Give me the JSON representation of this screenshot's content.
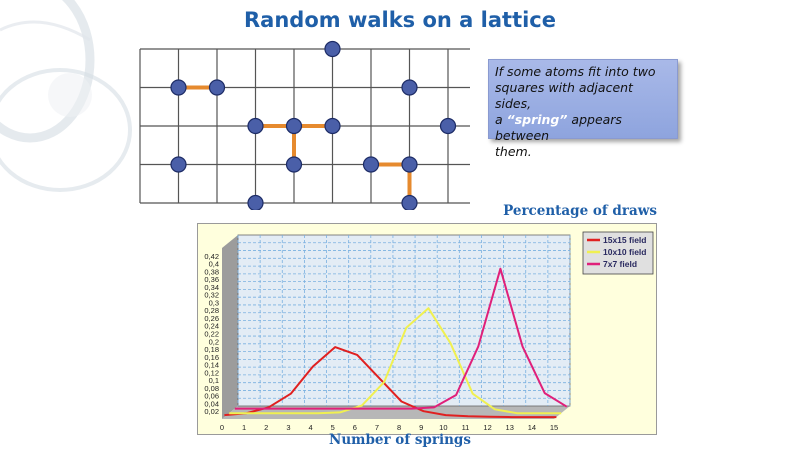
{
  "slide": {
    "title": "Random walks on a lattice",
    "note": {
      "line1": "If some atoms fit into two",
      "line2": "squares with adjacent sides,",
      "line3_pre": "a ",
      "line3_kw": "“spring”",
      "line3_post": " appears between",
      "line4": "them."
    }
  },
  "colors": {
    "title": "#1f5fa8",
    "grid_line": "#555555",
    "atom_fill": "#4a5fa8",
    "atom_stroke": "#1d2c66",
    "spring": "#e68a2e",
    "chart_bg": "#ffffdd",
    "plot_bg": "#e3ecf5",
    "plot_grid": "#7ab0e0",
    "legend_bg": "#e0e0e0"
  },
  "lattice": {
    "columns": 9,
    "rows": 4,
    "atoms": [
      {
        "col": 5,
        "row": 0
      },
      {
        "col": 1,
        "row": 1
      },
      {
        "col": 2,
        "row": 1
      },
      {
        "col": 7,
        "row": 1
      },
      {
        "col": 3,
        "row": 2
      },
      {
        "col": 4,
        "row": 2
      },
      {
        "col": 5,
        "row": 2
      },
      {
        "col": 8,
        "row": 2
      },
      {
        "col": 1,
        "row": 3
      },
      {
        "col": 4,
        "row": 3
      },
      {
        "col": 6,
        "row": 3
      },
      {
        "col": 7,
        "row": 3
      },
      {
        "col": 3,
        "row": 4
      },
      {
        "col": 7,
        "row": 4
      }
    ],
    "springs": [
      [
        {
          "col": 1,
          "row": 1
        },
        {
          "col": 2,
          "row": 1
        }
      ],
      [
        {
          "col": 3,
          "row": 2
        },
        {
          "col": 4,
          "row": 2
        }
      ],
      [
        {
          "col": 4,
          "row": 2
        },
        {
          "col": 5,
          "row": 2
        }
      ],
      [
        {
          "col": 4,
          "row": 2
        },
        {
          "col": 4,
          "row": 3
        }
      ],
      [
        {
          "col": 6,
          "row": 3
        },
        {
          "col": 7,
          "row": 3
        }
      ],
      [
        {
          "col": 7,
          "row": 3
        },
        {
          "col": 7,
          "row": 4
        }
      ]
    ]
  },
  "axis_labels": {
    "y_title": "Percentage of draws",
    "x_title": "Number of springs"
  },
  "chart_data": {
    "type": "line",
    "title": "",
    "xlabel": "Number of springs",
    "ylabel": "Percentage of draws",
    "x": [
      0,
      1,
      2,
      3,
      4,
      5,
      6,
      7,
      8,
      9,
      10,
      11,
      12,
      13,
      14,
      15
    ],
    "x_tick_labels": [
      "0",
      "1",
      "2",
      "3",
      "4",
      "5",
      "6",
      "7",
      "8",
      "9",
      "10",
      "11",
      "12",
      "13",
      "14",
      "15"
    ],
    "y_tick_labels": [
      "0,02",
      "0,04",
      "0,06",
      "0,08",
      "0,1",
      "0,12",
      "0,14",
      "0,16",
      "0,18",
      "0,2",
      "0,22",
      "0,24",
      "0,26",
      "0,28",
      "0,3",
      "0,32",
      "0,34",
      "0,36",
      "0,38",
      "0,4",
      "0,42"
    ],
    "ylim": [
      0,
      0.44
    ],
    "xlim": [
      0,
      15
    ],
    "grid": true,
    "legend_position": "top-right",
    "series": [
      {
        "name": "15x15 field",
        "color": "#e02020",
        "values": [
          0.005,
          0.01,
          0.025,
          0.06,
          0.13,
          0.18,
          0.16,
          0.1,
          0.04,
          0.015,
          0.005,
          0.002,
          0.001,
          0,
          0,
          0
        ]
      },
      {
        "name": "10x10 field",
        "color": "#f0f050",
        "values": [
          0,
          0,
          0,
          0,
          0,
          0.002,
          0.02,
          0.08,
          0.22,
          0.27,
          0.18,
          0.05,
          0.01,
          0,
          0,
          0
        ]
      },
      {
        "name": "7x7 field",
        "color": "#e0207a",
        "values": [
          0,
          0,
          0,
          0,
          0,
          0,
          0,
          0,
          0,
          0.003,
          0.035,
          0.16,
          0.36,
          0.16,
          0.04,
          0.005
        ]
      }
    ]
  }
}
